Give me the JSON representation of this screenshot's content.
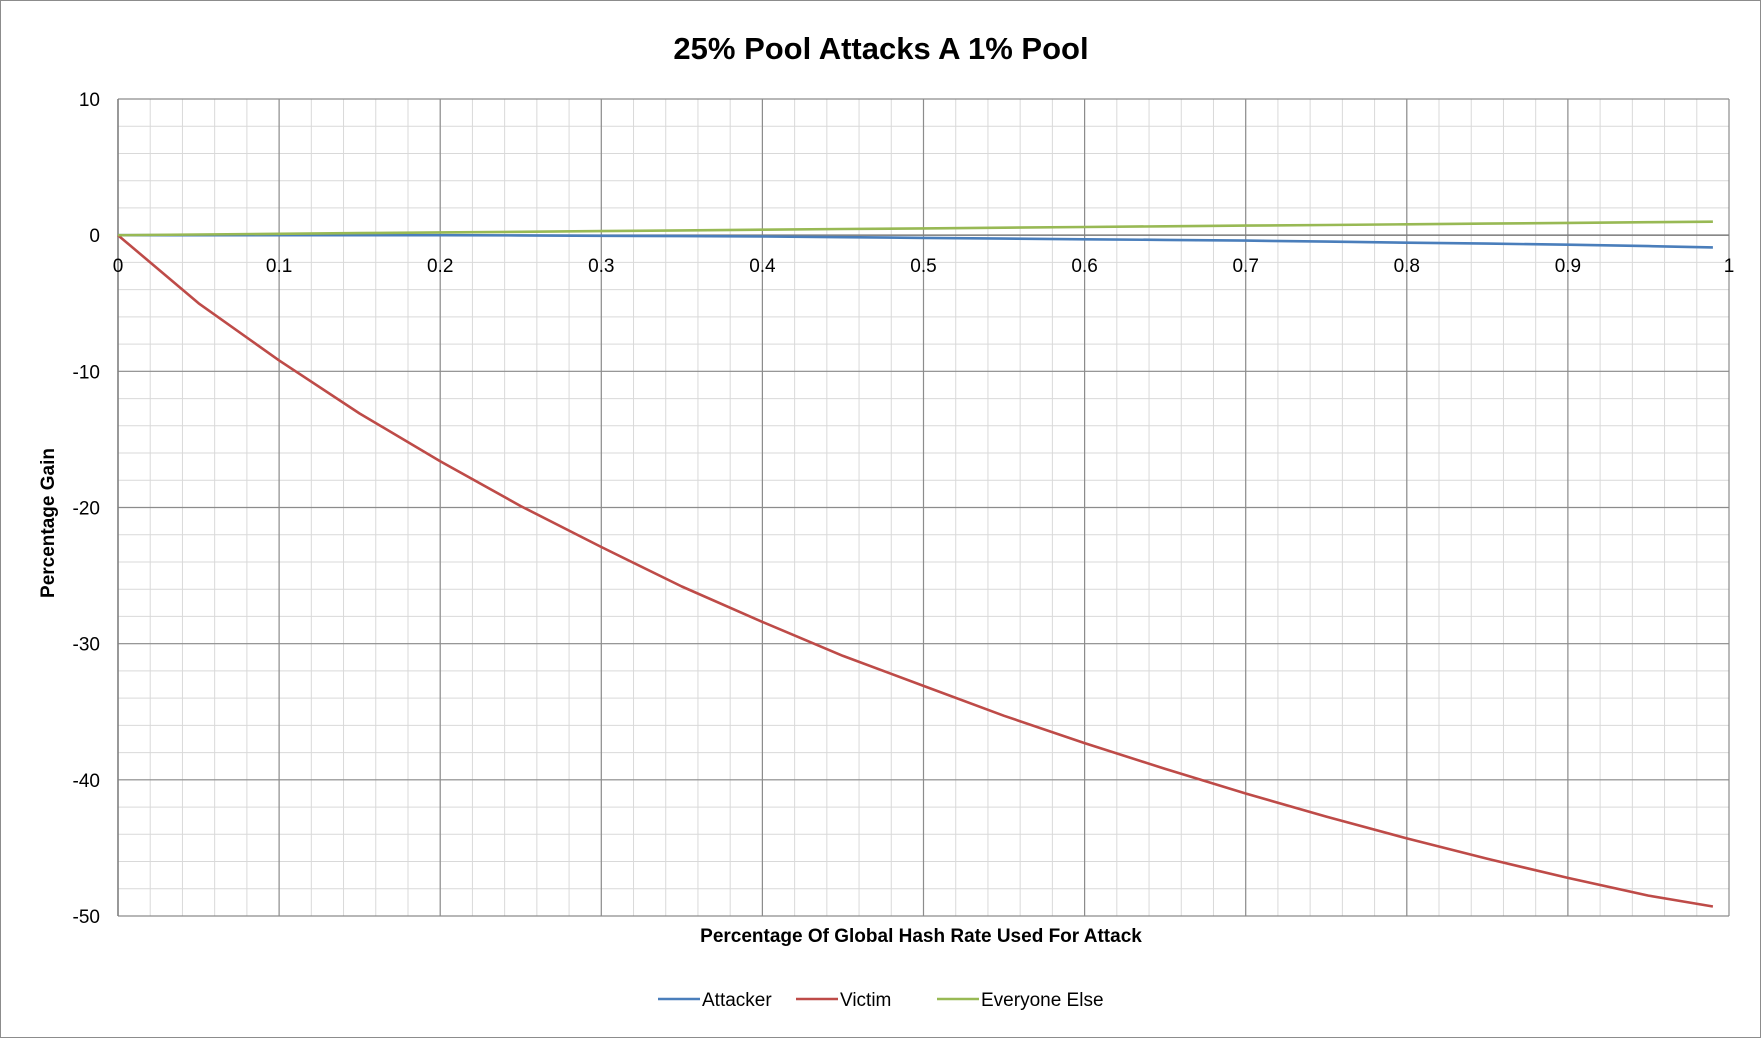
{
  "chart_data": {
    "type": "line",
    "title": "25% Pool Attacks A 1% Pool",
    "xlabel": "Percentage Of Global Hash Rate Used For Attack",
    "ylabel": "Percentage Gain",
    "xlim": [
      0,
      1
    ],
    "ylim": [
      -50,
      10
    ],
    "x_ticks": [
      "0",
      "0.1",
      "0.2",
      "0.3",
      "0.4",
      "0.5",
      "0.6",
      "0.7",
      "0.8",
      "0.9",
      "1"
    ],
    "y_ticks": [
      "10",
      "0",
      "-10",
      "-20",
      "-30",
      "-40",
      "-50"
    ],
    "grid": true,
    "legend_position": "bottom",
    "x": [
      0,
      0.05,
      0.1,
      0.15,
      0.2,
      0.25,
      0.3,
      0.35,
      0.4,
      0.45,
      0.5,
      0.55,
      0.6,
      0.65,
      0.7,
      0.75,
      0.8,
      0.85,
      0.9,
      0.95,
      0.99
    ],
    "series": [
      {
        "name": "Attacker",
        "color": "#4a7ebb",
        "values": [
          0,
          0,
          0,
          0,
          0,
          -0.02,
          -0.05,
          -0.07,
          -0.1,
          -0.15,
          -0.2,
          -0.25,
          -0.3,
          -0.35,
          -0.4,
          -0.47,
          -0.55,
          -0.62,
          -0.7,
          -0.8,
          -0.9
        ]
      },
      {
        "name": "Victim",
        "color": "#be4b48",
        "values": [
          0,
          -5,
          -9.2,
          -13.1,
          -16.6,
          -19.9,
          -22.9,
          -25.8,
          -28.4,
          -30.9,
          -33.1,
          -35.3,
          -37.3,
          -39.2,
          -41.0,
          -42.7,
          -44.3,
          -45.8,
          -47.2,
          -48.5,
          -49.3
        ]
      },
      {
        "name": "Everyone Else",
        "color": "#98b954",
        "values": [
          0,
          0.05,
          0.1,
          0.15,
          0.2,
          0.25,
          0.3,
          0.35,
          0.4,
          0.45,
          0.5,
          0.55,
          0.6,
          0.65,
          0.7,
          0.75,
          0.8,
          0.85,
          0.9,
          0.95,
          0.99
        ]
      }
    ]
  }
}
